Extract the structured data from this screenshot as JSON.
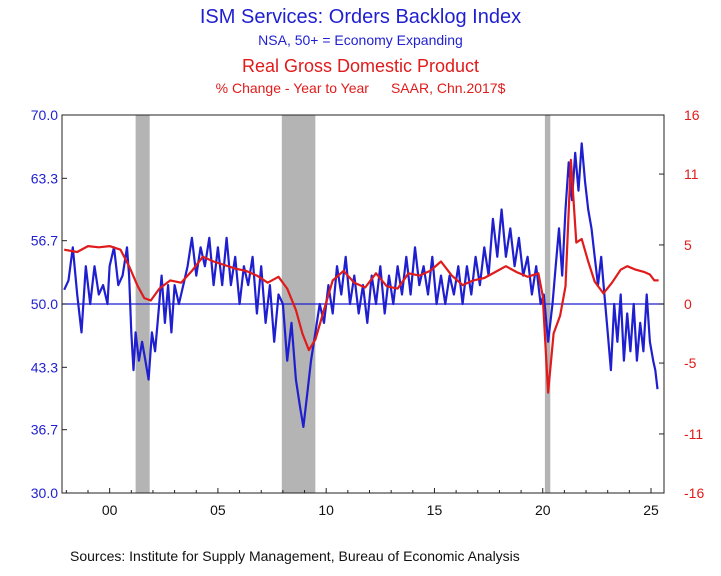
{
  "titles": {
    "title": "ISM Services: Orders Backlog Index",
    "subtitle": "NSA, 50+ = Economy Expanding",
    "title2": "Real Gross Domestic Product",
    "subtitle2_left": "% Change - Year to Year",
    "subtitle2_right": "SAAR, Chn.2017$"
  },
  "source": "Sources:  Institute for Supply Management, Bureau of Economic Analysis",
  "colors": {
    "ism": "#1f1fd0",
    "gdp": "#e01b1b",
    "recession": "#b4b4b4",
    "frame": "#222222"
  },
  "chart_data": {
    "type": "line",
    "x_axis": {
      "range": [
        1997.8,
        2025.6
      ],
      "ticks": [
        2000,
        2005,
        2010,
        2015,
        2020,
        2025
      ],
      "tick_labels": [
        "00",
        "05",
        "10",
        "15",
        "20",
        "25"
      ]
    },
    "y_left": {
      "range": [
        30.0,
        70.0
      ],
      "ticks": [
        30.0,
        36.7,
        43.3,
        50.0,
        56.7,
        63.3,
        70.0
      ],
      "tick_labels": [
        "30.0",
        "36.7",
        "43.3",
        "50.0",
        "56.7",
        "63.3",
        "70.0"
      ]
    },
    "y_right": {
      "range": [
        -16,
        16
      ],
      "ticks": [
        -16,
        -11,
        -5,
        0,
        5,
        11,
        16
      ],
      "tick_labels": [
        "-16",
        "-11",
        "-5",
        "0",
        "5",
        "11",
        "16"
      ]
    },
    "reference_line": {
      "axis": "left",
      "value": 50.0
    },
    "recessions": [
      [
        2001.2,
        2001.85
      ],
      [
        2007.95,
        2009.5
      ],
      [
        2020.1,
        2020.35
      ]
    ],
    "series": [
      {
        "name": "ISM Services: Orders Backlog Index",
        "axis": "left",
        "points": [
          [
            1997.9,
            51.5
          ],
          [
            1998.1,
            52.5
          ],
          [
            1998.3,
            56
          ],
          [
            1998.5,
            51
          ],
          [
            1998.7,
            47
          ],
          [
            1998.9,
            54
          ],
          [
            1999.1,
            50
          ],
          [
            1999.3,
            54
          ],
          [
            1999.5,
            51
          ],
          [
            1999.7,
            52
          ],
          [
            1999.9,
            50
          ],
          [
            2000.0,
            54
          ],
          [
            2000.2,
            56
          ],
          [
            2000.4,
            52
          ],
          [
            2000.6,
            53
          ],
          [
            2000.8,
            56
          ],
          [
            2000.9,
            53
          ],
          [
            2001.0,
            47
          ],
          [
            2001.1,
            43
          ],
          [
            2001.2,
            47
          ],
          [
            2001.35,
            44
          ],
          [
            2001.5,
            46
          ],
          [
            2001.65,
            44
          ],
          [
            2001.8,
            42
          ],
          [
            2001.95,
            47
          ],
          [
            2002.1,
            45
          ],
          [
            2002.25,
            49
          ],
          [
            2002.4,
            53
          ],
          [
            2002.55,
            48
          ],
          [
            2002.7,
            52
          ],
          [
            2002.85,
            47
          ],
          [
            2003.0,
            52
          ],
          [
            2003.2,
            50
          ],
          [
            2003.4,
            52
          ],
          [
            2003.6,
            54
          ],
          [
            2003.8,
            57
          ],
          [
            2004.0,
            53
          ],
          [
            2004.2,
            56
          ],
          [
            2004.4,
            54
          ],
          [
            2004.6,
            57
          ],
          [
            2004.8,
            52
          ],
          [
            2005.0,
            56
          ],
          [
            2005.2,
            52
          ],
          [
            2005.4,
            57
          ],
          [
            2005.6,
            52
          ],
          [
            2005.8,
            55
          ],
          [
            2006.0,
            50
          ],
          [
            2006.2,
            54
          ],
          [
            2006.4,
            52
          ],
          [
            2006.6,
            55
          ],
          [
            2006.8,
            49
          ],
          [
            2007.0,
            54
          ],
          [
            2007.2,
            48
          ],
          [
            2007.4,
            52
          ],
          [
            2007.6,
            46
          ],
          [
            2007.8,
            51
          ],
          [
            2008.0,
            50
          ],
          [
            2008.2,
            44
          ],
          [
            2008.4,
            48
          ],
          [
            2008.6,
            42
          ],
          [
            2008.8,
            39
          ],
          [
            2008.95,
            37
          ],
          [
            2009.1,
            40
          ],
          [
            2009.3,
            44
          ],
          [
            2009.5,
            47
          ],
          [
            2009.7,
            50
          ],
          [
            2009.9,
            48
          ],
          [
            2010.1,
            52
          ],
          [
            2010.3,
            49
          ],
          [
            2010.5,
            54
          ],
          [
            2010.7,
            51
          ],
          [
            2010.9,
            55
          ],
          [
            2011.1,
            50
          ],
          [
            2011.3,
            53
          ],
          [
            2011.5,
            49
          ],
          [
            2011.7,
            52
          ],
          [
            2011.9,
            48
          ],
          [
            2012.1,
            53
          ],
          [
            2012.3,
            50
          ],
          [
            2012.5,
            54
          ],
          [
            2012.7,
            49
          ],
          [
            2012.9,
            53
          ],
          [
            2013.1,
            50
          ],
          [
            2013.3,
            54
          ],
          [
            2013.5,
            51
          ],
          [
            2013.7,
            55
          ],
          [
            2013.9,
            51
          ],
          [
            2014.1,
            56
          ],
          [
            2014.3,
            52
          ],
          [
            2014.5,
            54
          ],
          [
            2014.7,
            51
          ],
          [
            2014.9,
            55
          ],
          [
            2015.1,
            50
          ],
          [
            2015.3,
            53
          ],
          [
            2015.5,
            50
          ],
          [
            2015.7,
            53
          ],
          [
            2015.9,
            51
          ],
          [
            2016.1,
            54
          ],
          [
            2016.3,
            50
          ],
          [
            2016.5,
            54
          ],
          [
            2016.7,
            51
          ],
          [
            2016.9,
            55
          ],
          [
            2017.1,
            52
          ],
          [
            2017.3,
            56
          ],
          [
            2017.5,
            53
          ],
          [
            2017.7,
            59
          ],
          [
            2017.9,
            55
          ],
          [
            2018.1,
            60
          ],
          [
            2018.3,
            55
          ],
          [
            2018.5,
            58
          ],
          [
            2018.7,
            54
          ],
          [
            2018.9,
            57
          ],
          [
            2019.1,
            53
          ],
          [
            2019.3,
            55
          ],
          [
            2019.5,
            51
          ],
          [
            2019.7,
            54
          ],
          [
            2019.9,
            50
          ],
          [
            2020.05,
            51
          ],
          [
            2020.25,
            46
          ],
          [
            2020.45,
            50
          ],
          [
            2020.6,
            54
          ],
          [
            2020.75,
            58
          ],
          [
            2020.9,
            53
          ],
          [
            2021.05,
            60
          ],
          [
            2021.2,
            65
          ],
          [
            2021.35,
            61
          ],
          [
            2021.5,
            66
          ],
          [
            2021.65,
            62
          ],
          [
            2021.8,
            67
          ],
          [
            2021.95,
            63
          ],
          [
            2022.1,
            60
          ],
          [
            2022.25,
            58
          ],
          [
            2022.4,
            55
          ],
          [
            2022.55,
            52
          ],
          [
            2022.7,
            55
          ],
          [
            2022.85,
            51
          ],
          [
            2023.0,
            47
          ],
          [
            2023.15,
            43
          ],
          [
            2023.3,
            50
          ],
          [
            2023.45,
            46
          ],
          [
            2023.6,
            51
          ],
          [
            2023.75,
            44
          ],
          [
            2023.9,
            49
          ],
          [
            2024.05,
            45
          ],
          [
            2024.2,
            50
          ],
          [
            2024.35,
            44
          ],
          [
            2024.5,
            48
          ],
          [
            2024.65,
            45
          ],
          [
            2024.8,
            51
          ],
          [
            2024.95,
            46
          ],
          [
            2025.1,
            44
          ],
          [
            2025.2,
            43
          ],
          [
            2025.3,
            41
          ]
        ]
      },
      {
        "name": "Real Gross Domestic Product",
        "axis": "right",
        "points": [
          [
            1997.9,
            4.6
          ],
          [
            1998.5,
            4.4
          ],
          [
            1999.0,
            4.9
          ],
          [
            1999.5,
            4.8
          ],
          [
            2000.0,
            4.9
          ],
          [
            2000.5,
            4.6
          ],
          [
            2000.9,
            3.2
          ],
          [
            2001.3,
            1.5
          ],
          [
            2001.6,
            0.5
          ],
          [
            2001.9,
            0.3
          ],
          [
            2002.3,
            1.3
          ],
          [
            2002.8,
            2.0
          ],
          [
            2003.3,
            1.8
          ],
          [
            2003.8,
            2.8
          ],
          [
            2004.3,
            4.0
          ],
          [
            2004.8,
            3.6
          ],
          [
            2005.3,
            3.3
          ],
          [
            2005.8,
            3.0
          ],
          [
            2006.3,
            2.8
          ],
          [
            2006.8,
            2.4
          ],
          [
            2007.3,
            1.8
          ],
          [
            2007.8,
            2.3
          ],
          [
            2008.2,
            1.3
          ],
          [
            2008.6,
            -0.5
          ],
          [
            2008.9,
            -2.5
          ],
          [
            2009.2,
            -3.9
          ],
          [
            2009.5,
            -3.0
          ],
          [
            2009.9,
            -0.5
          ],
          [
            2010.3,
            2.0
          ],
          [
            2010.8,
            2.8
          ],
          [
            2011.3,
            1.8
          ],
          [
            2011.8,
            1.4
          ],
          [
            2012.3,
            2.6
          ],
          [
            2012.8,
            1.5
          ],
          [
            2013.3,
            1.3
          ],
          [
            2013.8,
            2.6
          ],
          [
            2014.3,
            2.4
          ],
          [
            2014.8,
            2.8
          ],
          [
            2015.3,
            3.6
          ],
          [
            2015.8,
            2.4
          ],
          [
            2016.3,
            1.6
          ],
          [
            2016.8,
            2.0
          ],
          [
            2017.3,
            2.2
          ],
          [
            2017.8,
            2.7
          ],
          [
            2018.3,
            3.2
          ],
          [
            2018.8,
            2.7
          ],
          [
            2019.3,
            2.3
          ],
          [
            2019.8,
            2.6
          ],
          [
            2020.0,
            0.7
          ],
          [
            2020.25,
            -7.5
          ],
          [
            2020.5,
            -2.5
          ],
          [
            2020.8,
            -1.0
          ],
          [
            2021.05,
            1.5
          ],
          [
            2021.3,
            12.2
          ],
          [
            2021.55,
            5.2
          ],
          [
            2021.8,
            5.5
          ],
          [
            2022.1,
            3.6
          ],
          [
            2022.4,
            1.9
          ],
          [
            2022.8,
            0.9
          ],
          [
            2023.2,
            1.8
          ],
          [
            2023.6,
            2.9
          ],
          [
            2023.9,
            3.2
          ],
          [
            2024.3,
            2.9
          ],
          [
            2024.7,
            2.7
          ],
          [
            2024.95,
            2.5
          ],
          [
            2025.15,
            2.0
          ],
          [
            2025.35,
            2.0
          ]
        ]
      }
    ]
  }
}
